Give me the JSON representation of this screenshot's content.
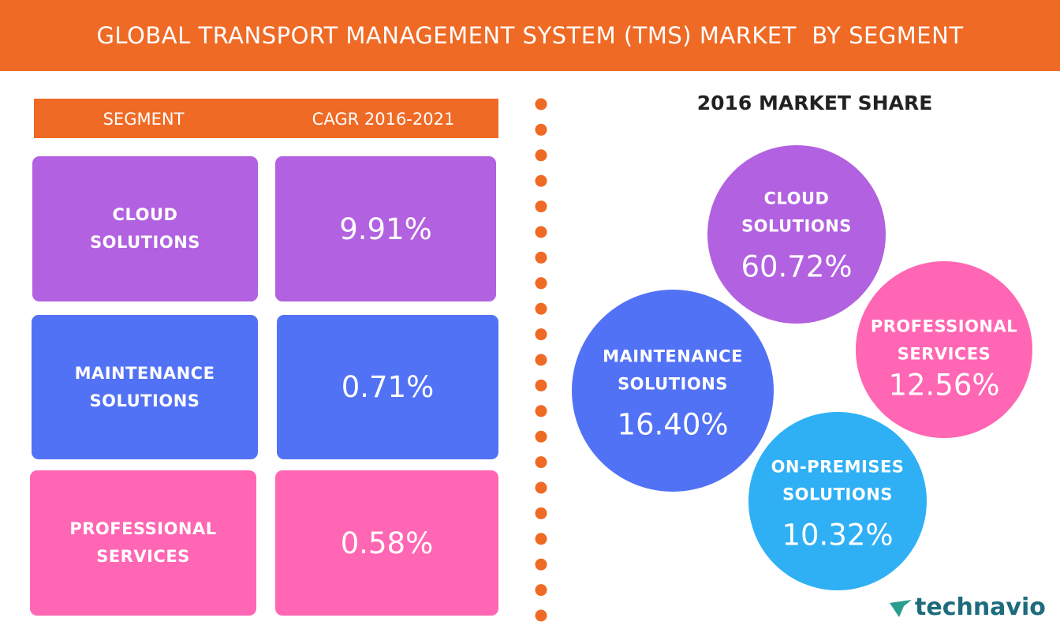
{
  "header": {
    "title": "GLOBAL TRANSPORT MANAGEMENT SYSTEM (TMS) MARKET  BY SEGMENT"
  },
  "table": {
    "headers": [
      "SEGMENT",
      "CAGR 2016-2021"
    ],
    "rows": [
      [
        "CLOUD SOLUTIONS",
        "9.91%"
      ],
      [
        "MAINTENANCE SOLUTIONS",
        "0.71%"
      ],
      [
        "PROFESSIONAL SERVICES",
        "0.58%"
      ]
    ]
  },
  "market_share": {
    "title": "2016 MARKET SHARE",
    "items": [
      {
        "label": "CLOUD SOLUTIONS",
        "value": "60.72%"
      },
      {
        "label": "PROFESSIONAL SERVICES",
        "value": "12.56%"
      },
      {
        "label": "MAINTENANCE SOLUTIONS",
        "value": "16.40%"
      },
      {
        "label": "ON-PREMISES SOLUTIONS",
        "value": "10.32%"
      }
    ]
  },
  "brand": {
    "name": "technavio"
  }
}
